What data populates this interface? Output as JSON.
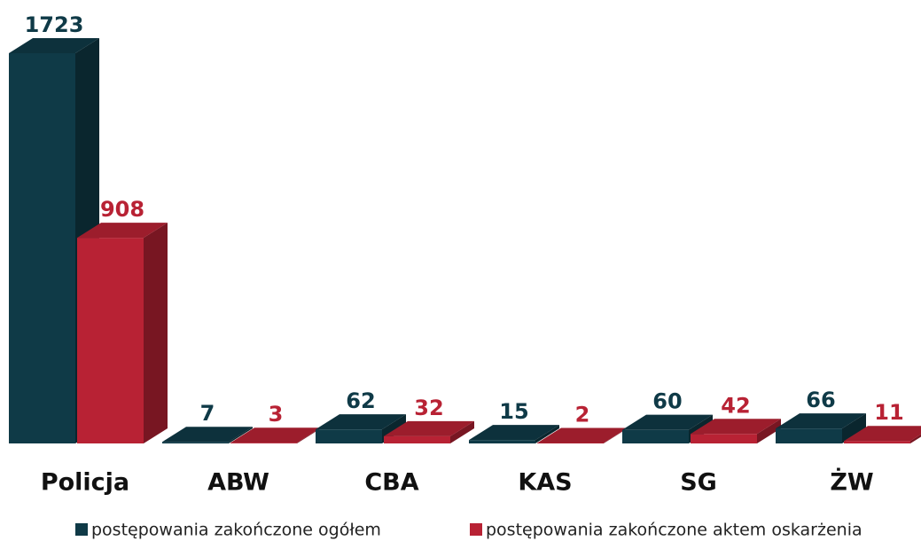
{
  "chart_data": {
    "type": "bar3d",
    "categories": [
      "Policja",
      "ABW",
      "CBA",
      "KAS",
      "SG",
      "ŻW"
    ],
    "series": [
      {
        "name": "postępowania zakończone ogółem",
        "color": "#0f3a47",
        "values": [
          1723,
          7,
          62,
          15,
          60,
          66
        ]
      },
      {
        "name": "postępowania zakończone aktem oskarżenia",
        "color": "#b82234",
        "values": [
          908,
          3,
          32,
          2,
          42,
          11
        ]
      }
    ]
  }
}
